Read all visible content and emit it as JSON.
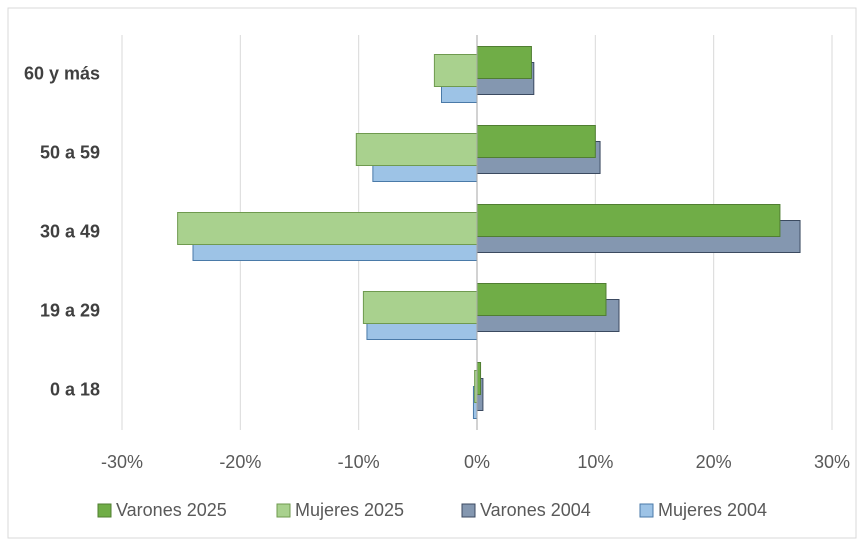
{
  "chart_data": {
    "type": "bar",
    "orientation": "horizontal",
    "categories": [
      "0 a 18",
      "19 a 29",
      "30 a 49",
      "50 a 59",
      "60 y más"
    ],
    "series": [
      {
        "name": "Varones 2025",
        "color": "#70ad47",
        "values": [
          0.3,
          10.9,
          25.6,
          10.0,
          4.6
        ]
      },
      {
        "name": "Mujeres 2025",
        "color": "#a9d18e",
        "values": [
          -0.2,
          -9.6,
          -25.3,
          -10.2,
          -3.6
        ]
      },
      {
        "name": "Varones 2004",
        "color": "#8497b0",
        "values": [
          0.5,
          12.0,
          27.3,
          10.4,
          4.8
        ]
      },
      {
        "name": "Mujeres 2004",
        "color": "#9dc3e6",
        "values": [
          -0.3,
          -9.3,
          -24.0,
          -8.8,
          -3.0
        ]
      }
    ],
    "xlim": [
      -30,
      30
    ],
    "xticks": [
      {
        "value": -30,
        "label": "-30%"
      },
      {
        "value": -20,
        "label": "-20%"
      },
      {
        "value": -10,
        "label": "-10%"
      },
      {
        "value": 0,
        "label": "0%"
      },
      {
        "value": 10,
        "label": "10%"
      },
      {
        "value": 20,
        "label": "20%"
      },
      {
        "value": 30,
        "label": "30%"
      }
    ],
    "grid": true,
    "legend": "bottom"
  }
}
